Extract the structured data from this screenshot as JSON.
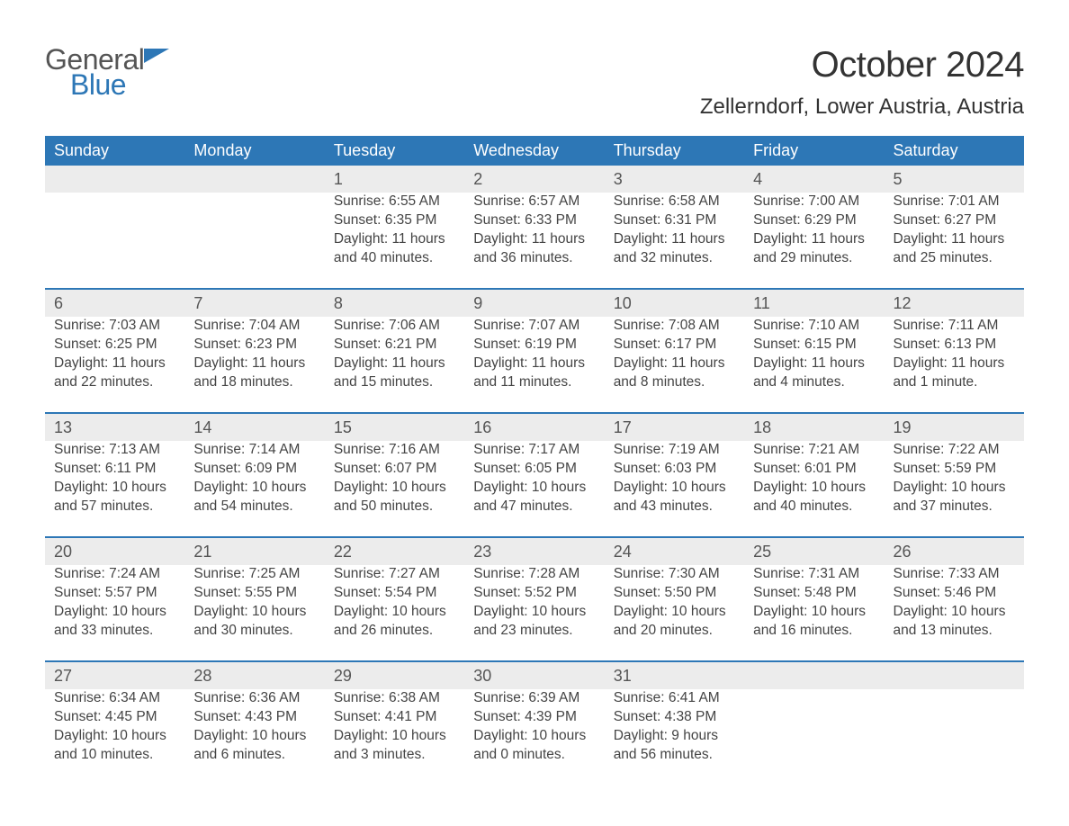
{
  "logo": {
    "word1": "General",
    "word2": "Blue"
  },
  "title": "October 2024",
  "location": "Zellerndorf, Lower Austria, Austria",
  "colors": {
    "header_bg": "#2d77b6",
    "header_text": "#ffffff",
    "daynum_bg": "#ececec",
    "border_top": "#2d77b6",
    "body_text": "#444444",
    "page_bg": "#ffffff"
  },
  "typography": {
    "title_fontsize": 40,
    "location_fontsize": 24,
    "header_fontsize": 18,
    "cell_fontsize": 15.5
  },
  "layout": {
    "columns": 7,
    "rows": 5
  },
  "day_headers": [
    "Sunday",
    "Monday",
    "Tuesday",
    "Wednesday",
    "Thursday",
    "Friday",
    "Saturday"
  ],
  "weeks": [
    [
      null,
      null,
      {
        "n": "1",
        "l1": "Sunrise: 6:55 AM",
        "l2": "Sunset: 6:35 PM",
        "l3": "Daylight: 11 hours",
        "l4": "and 40 minutes."
      },
      {
        "n": "2",
        "l1": "Sunrise: 6:57 AM",
        "l2": "Sunset: 6:33 PM",
        "l3": "Daylight: 11 hours",
        "l4": "and 36 minutes."
      },
      {
        "n": "3",
        "l1": "Sunrise: 6:58 AM",
        "l2": "Sunset: 6:31 PM",
        "l3": "Daylight: 11 hours",
        "l4": "and 32 minutes."
      },
      {
        "n": "4",
        "l1": "Sunrise: 7:00 AM",
        "l2": "Sunset: 6:29 PM",
        "l3": "Daylight: 11 hours",
        "l4": "and 29 minutes."
      },
      {
        "n": "5",
        "l1": "Sunrise: 7:01 AM",
        "l2": "Sunset: 6:27 PM",
        "l3": "Daylight: 11 hours",
        "l4": "and 25 minutes."
      }
    ],
    [
      {
        "n": "6",
        "l1": "Sunrise: 7:03 AM",
        "l2": "Sunset: 6:25 PM",
        "l3": "Daylight: 11 hours",
        "l4": "and 22 minutes."
      },
      {
        "n": "7",
        "l1": "Sunrise: 7:04 AM",
        "l2": "Sunset: 6:23 PM",
        "l3": "Daylight: 11 hours",
        "l4": "and 18 minutes."
      },
      {
        "n": "8",
        "l1": "Sunrise: 7:06 AM",
        "l2": "Sunset: 6:21 PM",
        "l3": "Daylight: 11 hours",
        "l4": "and 15 minutes."
      },
      {
        "n": "9",
        "l1": "Sunrise: 7:07 AM",
        "l2": "Sunset: 6:19 PM",
        "l3": "Daylight: 11 hours",
        "l4": "and 11 minutes."
      },
      {
        "n": "10",
        "l1": "Sunrise: 7:08 AM",
        "l2": "Sunset: 6:17 PM",
        "l3": "Daylight: 11 hours",
        "l4": "and 8 minutes."
      },
      {
        "n": "11",
        "l1": "Sunrise: 7:10 AM",
        "l2": "Sunset: 6:15 PM",
        "l3": "Daylight: 11 hours",
        "l4": "and 4 minutes."
      },
      {
        "n": "12",
        "l1": "Sunrise: 7:11 AM",
        "l2": "Sunset: 6:13 PM",
        "l3": "Daylight: 11 hours",
        "l4": "and 1 minute."
      }
    ],
    [
      {
        "n": "13",
        "l1": "Sunrise: 7:13 AM",
        "l2": "Sunset: 6:11 PM",
        "l3": "Daylight: 10 hours",
        "l4": "and 57 minutes."
      },
      {
        "n": "14",
        "l1": "Sunrise: 7:14 AM",
        "l2": "Sunset: 6:09 PM",
        "l3": "Daylight: 10 hours",
        "l4": "and 54 minutes."
      },
      {
        "n": "15",
        "l1": "Sunrise: 7:16 AM",
        "l2": "Sunset: 6:07 PM",
        "l3": "Daylight: 10 hours",
        "l4": "and 50 minutes."
      },
      {
        "n": "16",
        "l1": "Sunrise: 7:17 AM",
        "l2": "Sunset: 6:05 PM",
        "l3": "Daylight: 10 hours",
        "l4": "and 47 minutes."
      },
      {
        "n": "17",
        "l1": "Sunrise: 7:19 AM",
        "l2": "Sunset: 6:03 PM",
        "l3": "Daylight: 10 hours",
        "l4": "and 43 minutes."
      },
      {
        "n": "18",
        "l1": "Sunrise: 7:21 AM",
        "l2": "Sunset: 6:01 PM",
        "l3": "Daylight: 10 hours",
        "l4": "and 40 minutes."
      },
      {
        "n": "19",
        "l1": "Sunrise: 7:22 AM",
        "l2": "Sunset: 5:59 PM",
        "l3": "Daylight: 10 hours",
        "l4": "and 37 minutes."
      }
    ],
    [
      {
        "n": "20",
        "l1": "Sunrise: 7:24 AM",
        "l2": "Sunset: 5:57 PM",
        "l3": "Daylight: 10 hours",
        "l4": "and 33 minutes."
      },
      {
        "n": "21",
        "l1": "Sunrise: 7:25 AM",
        "l2": "Sunset: 5:55 PM",
        "l3": "Daylight: 10 hours",
        "l4": "and 30 minutes."
      },
      {
        "n": "22",
        "l1": "Sunrise: 7:27 AM",
        "l2": "Sunset: 5:54 PM",
        "l3": "Daylight: 10 hours",
        "l4": "and 26 minutes."
      },
      {
        "n": "23",
        "l1": "Sunrise: 7:28 AM",
        "l2": "Sunset: 5:52 PM",
        "l3": "Daylight: 10 hours",
        "l4": "and 23 minutes."
      },
      {
        "n": "24",
        "l1": "Sunrise: 7:30 AM",
        "l2": "Sunset: 5:50 PM",
        "l3": "Daylight: 10 hours",
        "l4": "and 20 minutes."
      },
      {
        "n": "25",
        "l1": "Sunrise: 7:31 AM",
        "l2": "Sunset: 5:48 PM",
        "l3": "Daylight: 10 hours",
        "l4": "and 16 minutes."
      },
      {
        "n": "26",
        "l1": "Sunrise: 7:33 AM",
        "l2": "Sunset: 5:46 PM",
        "l3": "Daylight: 10 hours",
        "l4": "and 13 minutes."
      }
    ],
    [
      {
        "n": "27",
        "l1": "Sunrise: 6:34 AM",
        "l2": "Sunset: 4:45 PM",
        "l3": "Daylight: 10 hours",
        "l4": "and 10 minutes."
      },
      {
        "n": "28",
        "l1": "Sunrise: 6:36 AM",
        "l2": "Sunset: 4:43 PM",
        "l3": "Daylight: 10 hours",
        "l4": "and 6 minutes."
      },
      {
        "n": "29",
        "l1": "Sunrise: 6:38 AM",
        "l2": "Sunset: 4:41 PM",
        "l3": "Daylight: 10 hours",
        "l4": "and 3 minutes."
      },
      {
        "n": "30",
        "l1": "Sunrise: 6:39 AM",
        "l2": "Sunset: 4:39 PM",
        "l3": "Daylight: 10 hours",
        "l4": "and 0 minutes."
      },
      {
        "n": "31",
        "l1": "Sunrise: 6:41 AM",
        "l2": "Sunset: 4:38 PM",
        "l3": "Daylight: 9 hours",
        "l4": "and 56 minutes."
      },
      null,
      null
    ]
  ]
}
